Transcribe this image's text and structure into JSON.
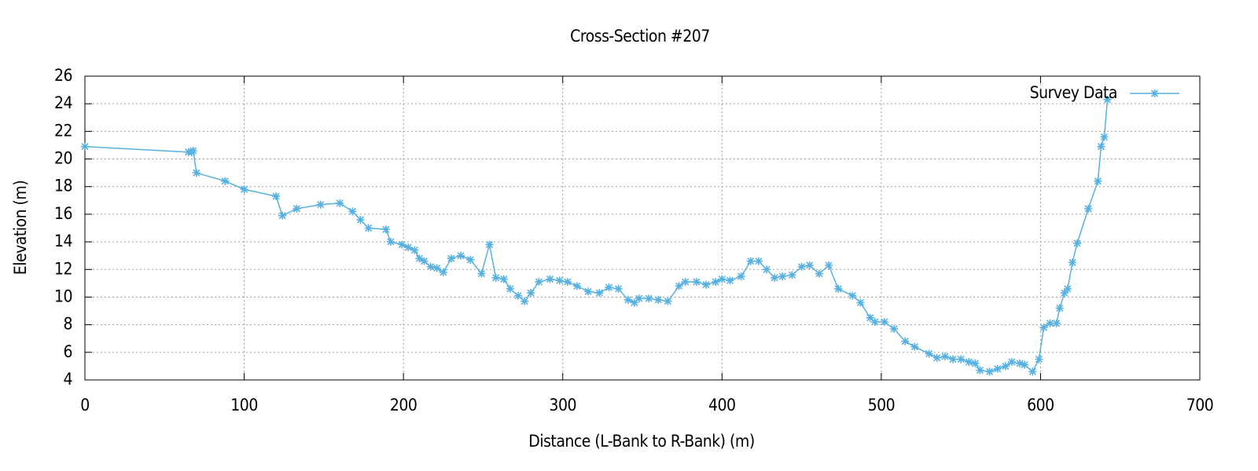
{
  "chart_data": {
    "type": "line",
    "title": "Cross-Section #207",
    "x_label": "Distance (L-Bank to R-Bank) (m)",
    "y_label": "Elevation (m)",
    "x": [
      0,
      65,
      67,
      68,
      70,
      88,
      100,
      120,
      124,
      133,
      148,
      160,
      168,
      173,
      178,
      189,
      192,
      199,
      203,
      207,
      210,
      213,
      217,
      221,
      225,
      230,
      236,
      242,
      249,
      254,
      258,
      263,
      267,
      272,
      276,
      280,
      285,
      292,
      298,
      303,
      309,
      316,
      323,
      329,
      335,
      341,
      345,
      348,
      354,
      360,
      366,
      373,
      377,
      384,
      390,
      396,
      400,
      405,
      412,
      418,
      423,
      428,
      433,
      438,
      444,
      450,
      455,
      461,
      467,
      473,
      482,
      487,
      493,
      496,
      502,
      508,
      515,
      521,
      530,
      535,
      540,
      545,
      550,
      555,
      559,
      562,
      568,
      573,
      578,
      582,
      587,
      590,
      595,
      599,
      602,
      606,
      610,
      612,
      615,
      617,
      620,
      623,
      630,
      636,
      638,
      640,
      642
    ],
    "series": [
      {
        "name": "Survey Data",
        "color": "#56b1e2",
        "values": [
          20.9,
          20.5,
          20.5,
          20.6,
          19.0,
          18.4,
          17.8,
          17.3,
          15.9,
          16.4,
          16.7,
          16.8,
          16.2,
          15.6,
          15.0,
          14.9,
          14.0,
          13.8,
          13.6,
          13.4,
          12.8,
          12.6,
          12.2,
          12.1,
          11.8,
          12.8,
          13.0,
          12.7,
          11.7,
          13.8,
          11.4,
          11.3,
          10.6,
          10.1,
          9.7,
          10.3,
          11.1,
          11.3,
          11.2,
          11.1,
          10.8,
          10.4,
          10.3,
          10.7,
          10.6,
          9.8,
          9.6,
          9.9,
          9.9,
          9.8,
          9.7,
          10.8,
          11.1,
          11.1,
          10.9,
          11.1,
          11.3,
          11.2,
          11.5,
          12.6,
          12.6,
          12.0,
          11.4,
          11.5,
          11.6,
          12.2,
          12.3,
          11.7,
          12.3,
          10.6,
          10.1,
          9.6,
          8.5,
          8.2,
          8.2,
          7.7,
          6.8,
          6.4,
          5.9,
          5.6,
          5.7,
          5.5,
          5.5,
          5.3,
          5.2,
          4.7,
          4.6,
          4.8,
          5.0,
          5.3,
          5.2,
          5.1,
          4.6,
          5.5,
          7.8,
          8.1,
          8.1,
          9.2,
          10.3,
          10.6,
          12.5,
          13.9,
          16.4,
          18.4,
          20.9,
          21.6,
          24.3
        ]
      }
    ],
    "xlim": [
      0,
      700
    ],
    "xticks": [
      0,
      100,
      200,
      300,
      400,
      500,
      600,
      700
    ],
    "ylim": [
      4,
      26
    ],
    "yticks": [
      4,
      6,
      8,
      10,
      12,
      14,
      16,
      18,
      20,
      22,
      24,
      26
    ],
    "grid": true,
    "legend": "top-right"
  }
}
